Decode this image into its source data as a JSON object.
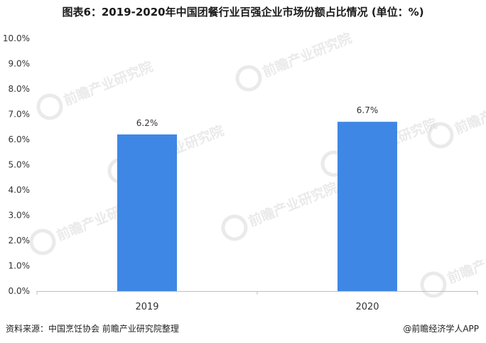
{
  "title": "图表6：2019-2020年中国团餐行业百强企业市场份额占比情况 (单位：%)",
  "source": "资料来源：中国烹饪协会 前瞻产业研究院整理",
  "credit": "@前瞻经济学人APP",
  "watermark": {
    "text": "前瞻产业研究院",
    "color": "#d9d9d9"
  },
  "chart_data": {
    "type": "bar",
    "categories": [
      "2019",
      "2020"
    ],
    "values": [
      6.2,
      6.7
    ],
    "data_labels": [
      "6.2%",
      "6.7%"
    ],
    "ylim": [
      0,
      10
    ],
    "yticks": [
      "0.0%",
      "1.0%",
      "2.0%",
      "3.0%",
      "4.0%",
      "5.0%",
      "6.0%",
      "7.0%",
      "8.0%",
      "9.0%",
      "10.0%"
    ],
    "bar_color": "#3f87e4",
    "grid": false,
    "legend": "none"
  }
}
